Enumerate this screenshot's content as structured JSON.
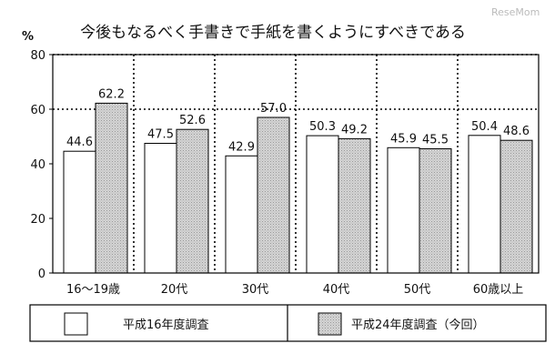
{
  "watermark": "ReseMom",
  "chart_data": {
    "type": "bar",
    "title": "今後もなるべく手書きで手紙を書くようにすべきである",
    "ylabel": "%",
    "xlabel": "",
    "ylim": [
      0,
      80
    ],
    "yticks": [
      0,
      20,
      40,
      60,
      80
    ],
    "grid": "dotted horizontal at 60 and 80",
    "categories": [
      "16～19歳",
      "20代",
      "30代",
      "40代",
      "50代",
      "60歳以上"
    ],
    "series": [
      {
        "name": "平成16年度調査",
        "values": [
          44.6,
          47.5,
          42.9,
          50.3,
          45.9,
          50.4
        ],
        "labels": [
          "44.6",
          "47.5",
          "42.9",
          "50.3",
          "45.9",
          "50.4"
        ],
        "fill": "#ffffff",
        "pattern": false
      },
      {
        "name": "平成24年度調査（今回）",
        "values": [
          62.2,
          52.6,
          57.0,
          49.2,
          45.5,
          48.6
        ],
        "labels": [
          "62.2",
          "52.6",
          "57.0",
          "49.2",
          "45.5",
          "48.6"
        ],
        "fill": "#d2d2d2",
        "pattern": true
      }
    ],
    "legend_position": "bottom"
  }
}
